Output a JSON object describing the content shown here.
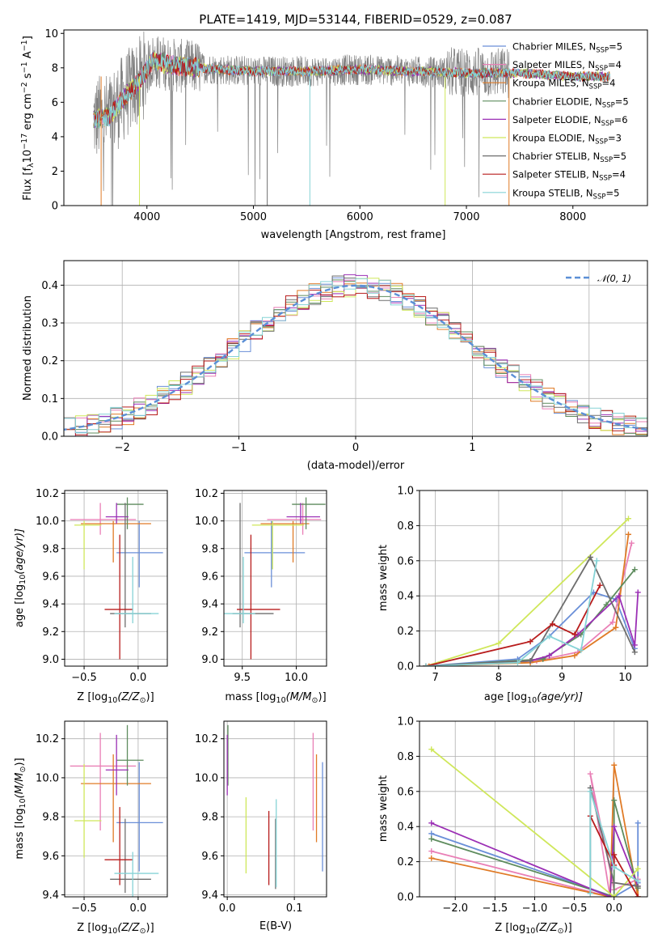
{
  "figure": {
    "title": "PLATE=1419, MJD=53144, FIBERID=0529, z=0.087"
  },
  "colors": {
    "Chabrier MILES": "#6a8fd8",
    "Salpeter MILES": "#e97fb6",
    "Kroupa MILES": "#e07b27",
    "Chabrier ELODIE": "#5e8c5e",
    "Salpeter ELODIE": "#9b2fb5",
    "Kroupa ELODIE": "#cfe75a",
    "Chabrier STELIB": "#6e6e6e",
    "Salpeter STELIB": "#b81c1c",
    "Kroupa STELIB": "#86d3d6"
  },
  "chart_data": [
    {
      "id": "spectrum",
      "type": "line",
      "title": "PLATE=1419, MJD=53144, FIBERID=0529, z=0.087",
      "xlabel": "wavelength [Angstrom, rest frame]",
      "ylabel_parts": [
        "Flux [f",
        "λ",
        "10",
        "−17",
        " erg cm",
        "−2",
        " s",
        "−1",
        " A",
        "−1",
        "]"
      ],
      "xlim": [
        3220,
        8700
      ],
      "ylim": [
        0,
        10.2
      ],
      "xticks": [
        4000,
        5000,
        6000,
        7000,
        8000
      ],
      "yticks": [
        0,
        2,
        4,
        6,
        8,
        10
      ],
      "grid": false,
      "legend_position": "right",
      "observed_color": "#808080",
      "observed_x_range": [
        3500,
        7400
      ],
      "model_x_range": [
        3500,
        8350
      ],
      "continuum_shape": [
        [
          3500,
          5.0
        ],
        [
          3650,
          5.2
        ],
        [
          3800,
          6.4
        ],
        [
          3950,
          7.4
        ],
        [
          4050,
          8.4
        ],
        [
          4300,
          8.1
        ],
        [
          4700,
          7.9
        ],
        [
          5000,
          7.8
        ],
        [
          5500,
          7.8
        ],
        [
          6000,
          7.9
        ],
        [
          6500,
          7.8
        ],
        [
          7000,
          7.7
        ],
        [
          7500,
          7.7
        ],
        [
          8000,
          7.5
        ],
        [
          8350,
          7.5
        ]
      ],
      "legend": [
        {
          "name": "Chabrier MILES",
          "nssp": "5"
        },
        {
          "name": "Salpeter MILES",
          "nssp": "4"
        },
        {
          "name": "Kroupa MILES",
          "nssp": "4"
        },
        {
          "name": "Chabrier ELODIE",
          "nssp": "5"
        },
        {
          "name": "Salpeter ELODIE",
          "nssp": "6"
        },
        {
          "name": "Kroupa ELODIE",
          "nssp": "3"
        },
        {
          "name": "Chabrier STELIB",
          "nssp": "5"
        },
        {
          "name": "Salpeter STELIB",
          "nssp": "4"
        },
        {
          "name": "Kroupa STELIB",
          "nssp": "5"
        }
      ]
    },
    {
      "id": "residuals",
      "type": "step",
      "xlabel": "(data-model)/error",
      "ylabel": "Normed distribution",
      "xlim": [
        -2.5,
        2.5
      ],
      "ylim": [
        0,
        0.465
      ],
      "xticks": [
        -2,
        -1,
        0,
        1,
        2
      ],
      "yticks": [
        0.0,
        0.1,
        0.2,
        0.3,
        0.4
      ],
      "grid": true,
      "bin_width": 0.1,
      "gaussian_label": "𝒩(0, 1)",
      "gaussian_color": "#5b8fd6",
      "legend_position": "top-right"
    },
    {
      "id": "age_vs_Z",
      "type": "errorbar",
      "xlabel_parts": [
        "Z [log",
        "10",
        "(Z/Z",
        "⊙",
        ")]"
      ],
      "ylabel_parts": [
        "age  [log",
        "10",
        "(age/yr)]"
      ],
      "xlim": [
        -0.68,
        0.27
      ],
      "ylim": [
        8.95,
        10.22
      ],
      "xticks": [
        -0.5,
        0.0
      ],
      "yticks": [
        9.0,
        9.2,
        9.4,
        9.6,
        9.8,
        10.0,
        10.2
      ],
      "grid": true,
      "points": [
        {
          "model": "Chabrier MILES",
          "x": 0.01,
          "xerr": [
            0.21,
            0.22
          ],
          "y": 9.77,
          "yerr": [
            0.25,
            0.23
          ]
        },
        {
          "model": "Salpeter MILES",
          "x": -0.35,
          "xerr": [
            0.28,
            0.33
          ],
          "y": 10.01,
          "yerr": [
            0.11,
            0.12
          ]
        },
        {
          "model": "Kroupa MILES",
          "x": -0.23,
          "xerr": [
            0.3,
            0.35
          ],
          "y": 9.98,
          "yerr": [
            0.28,
            0.02
          ]
        },
        {
          "model": "Chabrier ELODIE",
          "x": -0.1,
          "xerr": [
            0.1,
            0.15
          ],
          "y": 10.12,
          "yerr": [
            0.18,
            0.05
          ]
        },
        {
          "model": "Salpeter ELODIE",
          "x": -0.2,
          "xerr": [
            0.1,
            0.11
          ],
          "y": 10.03,
          "yerr": [
            0.05,
            0.1
          ]
        },
        {
          "model": "Kroupa ELODIE",
          "x": -0.5,
          "xerr": [
            0.09,
            0.16
          ],
          "y": 9.97,
          "yerr": [
            0.32,
            0.03
          ]
        },
        {
          "model": "Chabrier STELIB",
          "x": -0.12,
          "xerr": [
            0.14,
            0.24
          ],
          "y": 9.33,
          "yerr": [
            0.1,
            0.8
          ]
        },
        {
          "model": "Salpeter STELIB",
          "x": -0.17,
          "xerr": [
            0.14,
            0.12
          ],
          "y": 9.36,
          "yerr": [
            0.36,
            0.54
          ]
        },
        {
          "model": "Kroupa STELIB",
          "x": -0.05,
          "xerr": [
            0.17,
            0.24
          ],
          "y": 9.33,
          "yerr": [
            0.07,
            0.41
          ]
        }
      ]
    },
    {
      "id": "age_vs_mass",
      "type": "errorbar",
      "xlabel_parts": [
        "mass [log",
        "10",
        "(M/M",
        "⊙",
        ")]"
      ],
      "xlim": [
        9.33,
        10.28
      ],
      "ylim": [
        8.95,
        10.22
      ],
      "xticks": [
        9.5,
        10.0
      ],
      "yticks": [
        9.0,
        9.2,
        9.4,
        9.6,
        9.8,
        10.0,
        10.2
      ],
      "grid": true,
      "points": [
        {
          "model": "Chabrier MILES",
          "x": 9.77,
          "xerr": [
            0.25,
            0.31
          ],
          "y": 9.77,
          "yerr": [
            0.25,
            0.23
          ]
        },
        {
          "model": "Salpeter MILES",
          "x": 10.06,
          "xerr": [
            0.33,
            0.17
          ],
          "y": 10.01,
          "yerr": [
            0.11,
            0.12
          ]
        },
        {
          "model": "Kroupa MILES",
          "x": 9.97,
          "xerr": [
            0.3,
            0.15
          ],
          "y": 9.98,
          "yerr": [
            0.28,
            0.02
          ]
        },
        {
          "model": "Chabrier ELODIE",
          "x": 10.09,
          "xerr": [
            0.13,
            0.18
          ],
          "y": 10.12,
          "yerr": [
            0.18,
            0.05
          ]
        },
        {
          "model": "Salpeter ELODIE",
          "x": 10.04,
          "xerr": [
            0.13,
            0.18
          ],
          "y": 10.03,
          "yerr": [
            0.05,
            0.1
          ]
        },
        {
          "model": "Kroupa ELODIE",
          "x": 9.78,
          "xerr": [
            0.19,
            0.29
          ],
          "y": 9.97,
          "yerr": [
            0.32,
            0.03
          ]
        },
        {
          "model": "Chabrier STELIB",
          "x": 9.48,
          "xerr": [
            0.07,
            0.31
          ],
          "y": 9.33,
          "yerr": [
            0.1,
            0.8
          ]
        },
        {
          "model": "Salpeter STELIB",
          "x": 9.58,
          "xerr": [
            0.13,
            0.27
          ],
          "y": 9.36,
          "yerr": [
            0.36,
            0.54
          ]
        },
        {
          "model": "Kroupa STELIB",
          "x": 9.51,
          "xerr": [
            0.2,
            0.11
          ],
          "y": 9.33,
          "yerr": [
            0.07,
            0.41
          ]
        }
      ]
    },
    {
      "id": "weight_vs_age",
      "type": "line",
      "xlabel_parts": [
        "age  [log",
        "10",
        "(age/yr)]"
      ],
      "ylabel": "mass weight",
      "xlim": [
        6.75,
        10.35
      ],
      "ylim": [
        0.0,
        1.0
      ],
      "xticks": [
        7,
        8,
        9,
        10
      ],
      "yticks": [
        0.0,
        0.2,
        0.4,
        0.6,
        0.8,
        1.0
      ],
      "grid": true,
      "series": [
        {
          "model": "Chabrier MILES",
          "x": [
            6.85,
            8.3,
            8.8,
            9.5,
            9.85,
            10.15
          ],
          "y": [
            0.0,
            0.04,
            0.17,
            0.42,
            0.38,
            0.1
          ]
        },
        {
          "model": "Salpeter MILES",
          "x": [
            6.85,
            8.6,
            9.25,
            9.8,
            10.1
          ],
          "y": [
            0.0,
            0.03,
            0.08,
            0.25,
            0.7
          ]
        },
        {
          "model": "Kroupa MILES",
          "x": [
            6.9,
            8.5,
            9.2,
            9.85,
            10.05
          ],
          "y": [
            0.0,
            0.02,
            0.06,
            0.22,
            0.75
          ]
        },
        {
          "model": "Chabrier ELODIE",
          "x": [
            6.85,
            8.7,
            9.3,
            9.7,
            10.15
          ],
          "y": [
            0.0,
            0.04,
            0.18,
            0.35,
            0.55
          ]
        },
        {
          "model": "Salpeter ELODIE",
          "x": [
            6.85,
            8.5,
            8.8,
            9.25,
            9.9,
            10.15,
            10.2
          ],
          "y": [
            0.0,
            0.03,
            0.06,
            0.18,
            0.4,
            0.12,
            0.42
          ]
        },
        {
          "model": "Kroupa ELODIE",
          "x": [
            6.85,
            8.0,
            10.05
          ],
          "y": [
            0.0,
            0.13,
            0.84
          ]
        },
        {
          "model": "Chabrier STELIB",
          "x": [
            6.85,
            8.5,
            9.45,
            10.15
          ],
          "y": [
            0.0,
            0.03,
            0.62,
            0.08
          ]
        },
        {
          "model": "Salpeter STELIB",
          "x": [
            6.85,
            8.5,
            8.85,
            9.2,
            9.6
          ],
          "y": [
            0.0,
            0.14,
            0.24,
            0.18,
            0.46
          ]
        },
        {
          "model": "Kroupa STELIB",
          "x": [
            6.85,
            8.3,
            8.8,
            9.3,
            9.55
          ],
          "y": [
            0.0,
            0.02,
            0.17,
            0.09,
            0.6
          ]
        }
      ]
    },
    {
      "id": "mass_vs_Z",
      "type": "errorbar",
      "xlabel_parts": [
        "Z [log",
        "10",
        "(Z/Z",
        "⊙",
        ")]"
      ],
      "ylabel_parts": [
        "mass [log",
        "10",
        "(M/M",
        "⊙",
        ")]"
      ],
      "xlim": [
        -0.68,
        0.27
      ],
      "ylim": [
        9.39,
        10.29
      ],
      "xticks": [
        -0.5,
        0.0
      ],
      "yticks": [
        9.4,
        9.6,
        9.8,
        10.0,
        10.2
      ],
      "grid": true,
      "points": [
        {
          "model": "Chabrier MILES",
          "x": 0.01,
          "xerr": [
            0.21,
            0.22
          ],
          "y": 9.77,
          "yerr": [
            0.25,
            0.31
          ]
        },
        {
          "model": "Salpeter MILES",
          "x": -0.35,
          "xerr": [
            0.28,
            0.33
          ],
          "y": 10.06,
          "yerr": [
            0.33,
            0.17
          ]
        },
        {
          "model": "Kroupa MILES",
          "x": -0.23,
          "xerr": [
            0.3,
            0.35
          ],
          "y": 9.97,
          "yerr": [
            0.3,
            0.15
          ]
        },
        {
          "model": "Chabrier ELODIE",
          "x": -0.1,
          "xerr": [
            0.1,
            0.15
          ],
          "y": 10.09,
          "yerr": [
            0.13,
            0.18
          ]
        },
        {
          "model": "Salpeter ELODIE",
          "x": -0.2,
          "xerr": [
            0.1,
            0.11
          ],
          "y": 10.04,
          "yerr": [
            0.13,
            0.18
          ]
        },
        {
          "model": "Kroupa ELODIE",
          "x": -0.5,
          "xerr": [
            0.09,
            0.16
          ],
          "y": 9.78,
          "yerr": [
            0.19,
            0.29
          ]
        },
        {
          "model": "Chabrier STELIB",
          "x": -0.12,
          "xerr": [
            0.14,
            0.24
          ],
          "y": 9.48,
          "yerr": [
            0.07,
            0.31
          ]
        },
        {
          "model": "Salpeter STELIB",
          "x": -0.17,
          "xerr": [
            0.14,
            0.12
          ],
          "y": 9.58,
          "yerr": [
            0.13,
            0.27
          ]
        },
        {
          "model": "Kroupa STELIB",
          "x": -0.05,
          "xerr": [
            0.17,
            0.24
          ],
          "y": 9.51,
          "yerr": [
            0.2,
            0.11
          ]
        }
      ]
    },
    {
      "id": "mass_vs_EBV",
      "type": "errorbar",
      "xlabel": "E(B-V)",
      "xlim": [
        -0.005,
        0.148
      ],
      "ylim": [
        9.39,
        10.29
      ],
      "xticks": [
        0.0,
        0.1
      ],
      "yticks": [
        9.4,
        9.6,
        9.8,
        10.0,
        10.2
      ],
      "grid": true,
      "points": [
        {
          "model": "Chabrier MILES",
          "x": 0.142,
          "xerr": [
            0,
            0
          ],
          "y": 9.77,
          "yerr": [
            0.25,
            0.31
          ]
        },
        {
          "model": "Salpeter MILES",
          "x": 0.128,
          "xerr": [
            0,
            0
          ],
          "y": 10.06,
          "yerr": [
            0.33,
            0.17
          ]
        },
        {
          "model": "Kroupa MILES",
          "x": 0.133,
          "xerr": [
            0,
            0
          ],
          "y": 9.97,
          "yerr": [
            0.3,
            0.15
          ]
        },
        {
          "model": "Chabrier ELODIE",
          "x": 0.001,
          "xerr": [
            0,
            0
          ],
          "y": 10.09,
          "yerr": [
            0.13,
            0.18
          ]
        },
        {
          "model": "Salpeter ELODIE",
          "x": 0.0,
          "xerr": [
            0,
            0
          ],
          "y": 10.04,
          "yerr": [
            0.13,
            0.18
          ]
        },
        {
          "model": "Kroupa ELODIE",
          "x": 0.028,
          "xerr": [
            0,
            0
          ],
          "y": 9.78,
          "yerr": [
            0.27,
            0.12
          ]
        },
        {
          "model": "Chabrier STELIB",
          "x": 0.072,
          "xerr": [
            0,
            0
          ],
          "y": 9.67,
          "yerr": [
            0.24,
            0.12
          ]
        },
        {
          "model": "Salpeter STELIB",
          "x": 0.062,
          "xerr": [
            0,
            0
          ],
          "y": 9.64,
          "yerr": [
            0.19,
            0.19
          ]
        },
        {
          "model": "Kroupa STELIB",
          "x": 0.073,
          "xerr": [
            0,
            0
          ],
          "y": 9.7,
          "yerr": [
            0.26,
            0.19
          ]
        }
      ]
    },
    {
      "id": "weight_vs_Z",
      "type": "line",
      "xlabel_parts": [
        "Z [log",
        "10",
        "(Z/Z",
        "⊙",
        ")]"
      ],
      "ylabel": "mass weight",
      "xlim": [
        -2.45,
        0.42
      ],
      "ylim": [
        0.0,
        1.0
      ],
      "xticks": [
        -2.0,
        -1.5,
        -1.0,
        -0.5,
        0.0
      ],
      "xticklabels": [
        "−2.0",
        "−1.5",
        "−1.0",
        "−0.5",
        "0.0"
      ],
      "yticks": [
        0.0,
        0.2,
        0.4,
        0.6,
        0.8,
        1.0
      ],
      "grid": true,
      "series": [
        {
          "model": "Chabrier MILES",
          "x": [
            -2.3,
            0.0,
            0.3,
            0.3
          ],
          "y": [
            0.36,
            0.0,
            0.08,
            0.42
          ]
        },
        {
          "model": "Salpeter MILES",
          "x": [
            -2.3,
            -0.05,
            -0.3,
            0.0,
            0.3
          ],
          "y": [
            0.26,
            0.0,
            0.7,
            0.04,
            0.1
          ]
        },
        {
          "model": "Kroupa MILES",
          "x": [
            -2.3,
            -0.05,
            0.0,
            0.3,
            0.3
          ],
          "y": [
            0.22,
            0.0,
            0.75,
            0.0,
            0.05
          ]
        },
        {
          "model": "Chabrier ELODIE",
          "x": [
            -2.3,
            0.0,
            0.0,
            0.3
          ],
          "y": [
            0.33,
            0.0,
            0.55,
            0.05
          ]
        },
        {
          "model": "Salpeter ELODIE",
          "x": [
            -2.3,
            -0.05,
            0.0,
            0.3
          ],
          "y": [
            0.42,
            0.0,
            0.4,
            0.06
          ]
        },
        {
          "model": "Kroupa ELODIE",
          "x": [
            -2.3,
            0.0,
            0.3
          ],
          "y": [
            0.84,
            0.0,
            0.16
          ]
        },
        {
          "model": "Chabrier STELIB",
          "x": [
            -0.3,
            -0.3,
            0.0,
            0.3
          ],
          "y": [
            0.02,
            0.62,
            0.08,
            0.06
          ]
        },
        {
          "model": "Salpeter STELIB",
          "x": [
            -0.3,
            0.0,
            0.0,
            0.3
          ],
          "y": [
            0.46,
            0.18,
            0.24,
            0.0
          ]
        },
        {
          "model": "Kroupa STELIB",
          "x": [
            -0.3,
            -0.3,
            0.0,
            0.3
          ],
          "y": [
            0.02,
            0.6,
            0.17,
            0.09
          ]
        }
      ]
    }
  ]
}
